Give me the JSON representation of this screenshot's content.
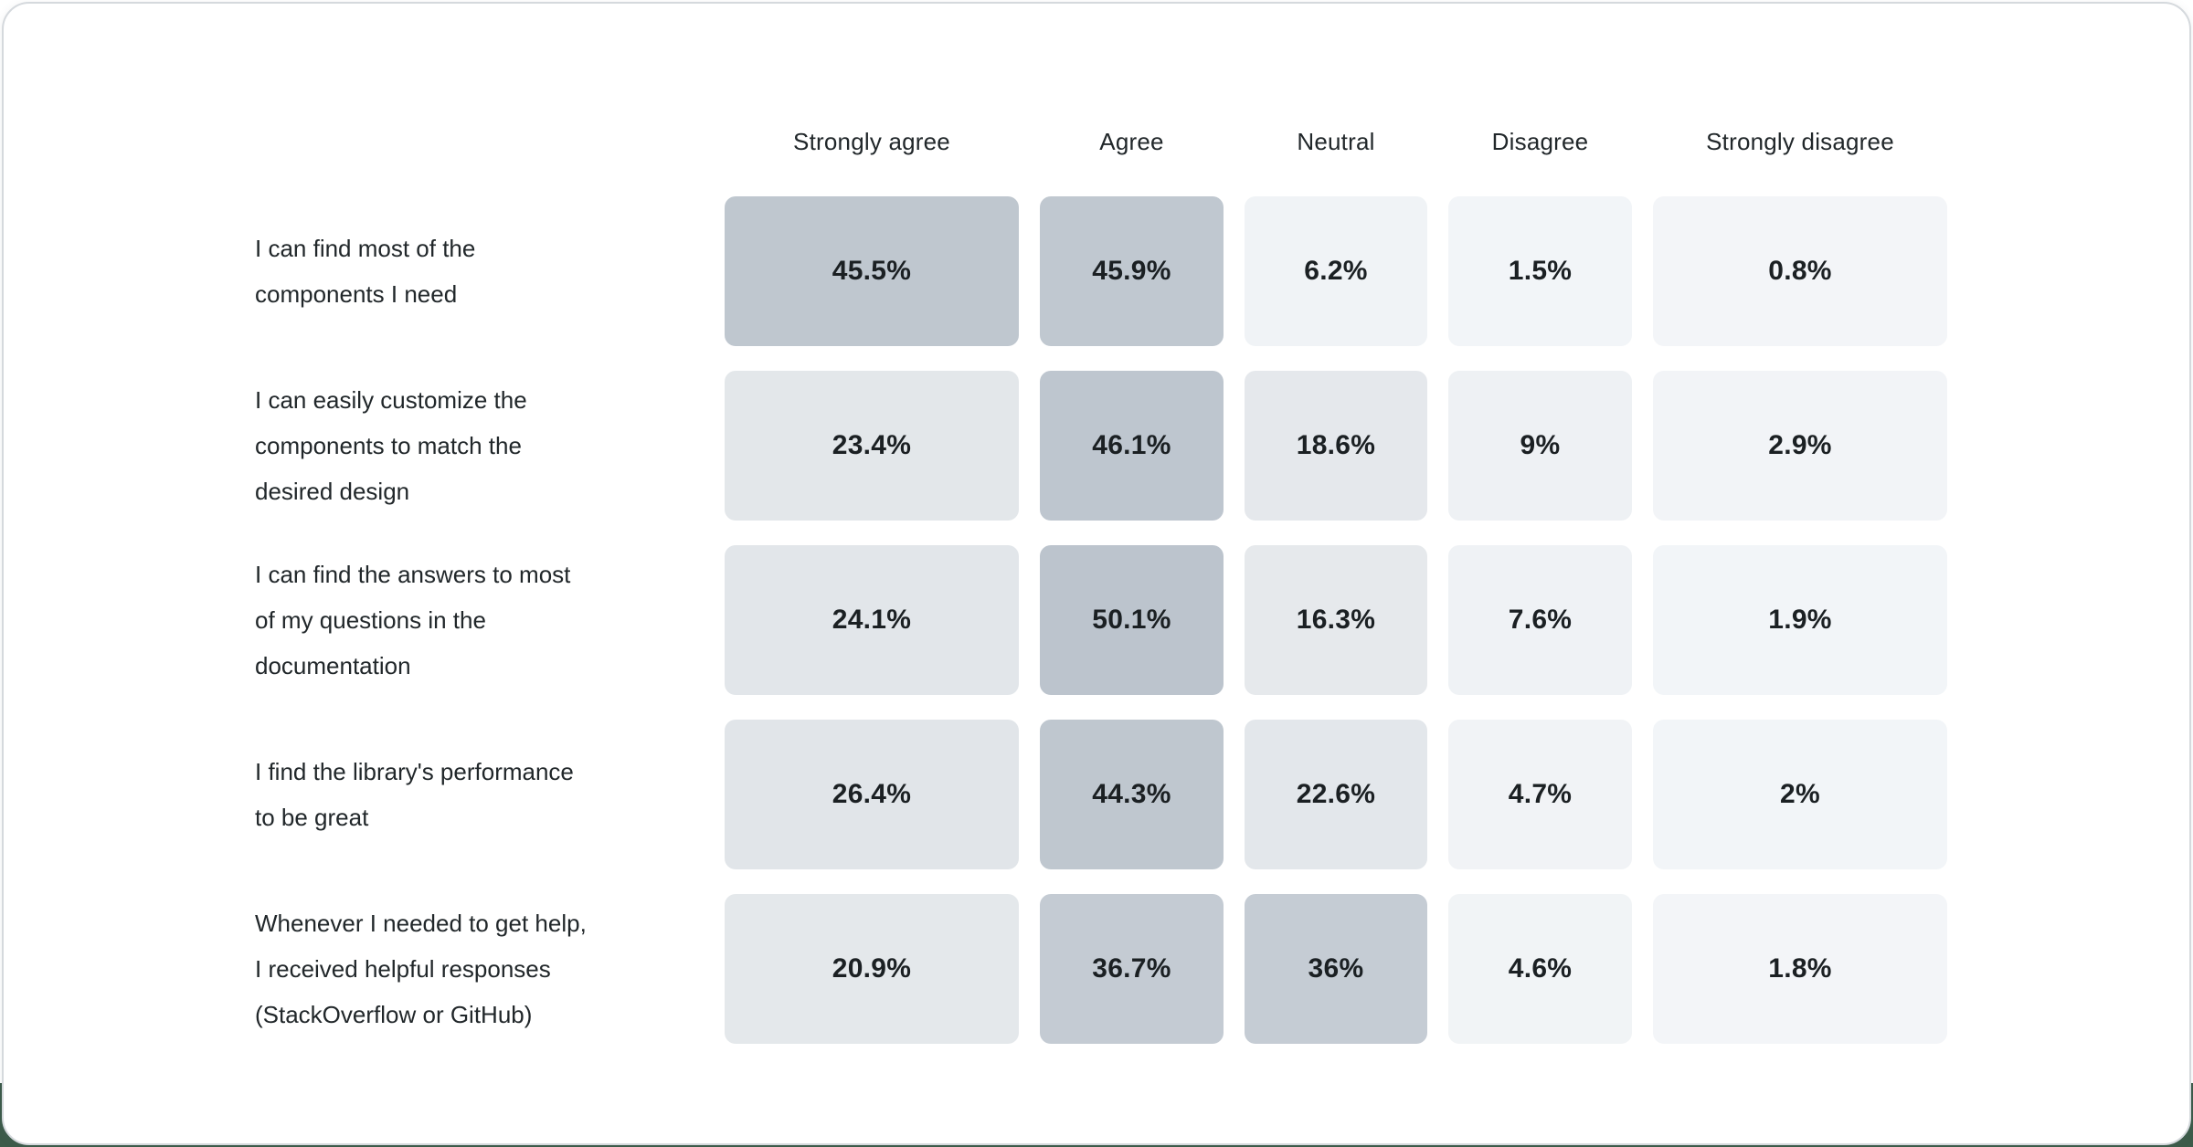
{
  "page": {
    "background_top": "#ffffff",
    "background_bottom": "#3c5b49",
    "card_background": "#ffffff",
    "card_border_color": "#d5d9dd",
    "text_color": "#21272a"
  },
  "chart_data": {
    "type": "heatmap",
    "title": "",
    "unit": "%",
    "legend_position": "none",
    "columns": [
      "Strongly agree",
      "Agree",
      "Neutral",
      "Disagree",
      "Strongly disagree"
    ],
    "rows": [
      {
        "label": "I can find most of the components I need",
        "label_lines": [
          "I can find most of the",
          "components I need"
        ],
        "values": [
          45.5,
          45.9,
          6.2,
          1.5,
          0.8
        ],
        "display": [
          "45.5%",
          "45.9%",
          "6.2%",
          "1.5%",
          "0.8%"
        ],
        "colors": [
          "#bfc7cf",
          "#c0c8d0",
          "#f0f3f6",
          "#f2f5f8",
          "#f3f5f8"
        ]
      },
      {
        "label": "I can easily customize the components to match the desired design",
        "label_lines": [
          "I can easily customize the",
          "components to match the",
          "desired design"
        ],
        "values": [
          23.4,
          46.1,
          18.6,
          9,
          2.9
        ],
        "display": [
          "23.4%",
          "46.1%",
          "18.6%",
          "9%",
          "2.9%"
        ],
        "colors": [
          "#e3e7ea",
          "#bec6cf",
          "#e5e8ec",
          "#eef1f4",
          "#f2f4f7"
        ]
      },
      {
        "label": "I can find the answers to most of my questions in the documentation",
        "label_lines": [
          "I can find the answers to most",
          "of my questions in the",
          "documentation"
        ],
        "values": [
          24.1,
          50.1,
          16.3,
          7.6,
          1.9
        ],
        "display": [
          "24.1%",
          "50.1%",
          "16.3%",
          "7.6%",
          "1.9%"
        ],
        "colors": [
          "#e2e6ea",
          "#bcc4cd",
          "#e6e9ec",
          "#eff2f5",
          "#f2f5f8"
        ]
      },
      {
        "label": "I find the library's performance to be great",
        "label_lines": [
          "I find the library's performance",
          "to be great"
        ],
        "values": [
          26.4,
          44.3,
          22.6,
          4.7,
          2
        ],
        "display": [
          "26.4%",
          "44.3%",
          "22.6%",
          "4.7%",
          "2%"
        ],
        "colors": [
          "#e1e5e9",
          "#bfc7cf",
          "#e3e7eb",
          "#f1f3f6",
          "#f2f5f8"
        ]
      },
      {
        "label": "Whenever I needed to get help, I received helpful responses (StackOverflow or GitHub)",
        "label_lines": [
          "Whenever I needed to get help,",
          "I received helpful responses",
          "(StackOverflow or GitHub)"
        ],
        "values": [
          20.9,
          36.7,
          36,
          4.6,
          1.8
        ],
        "display": [
          "20.9%",
          "36.7%",
          "36%",
          "4.6%",
          "1.8%"
        ],
        "colors": [
          "#e4e8eb",
          "#c4cbd3",
          "#c5ccd4",
          "#f1f4f6",
          "#f3f5f8"
        ]
      }
    ]
  }
}
